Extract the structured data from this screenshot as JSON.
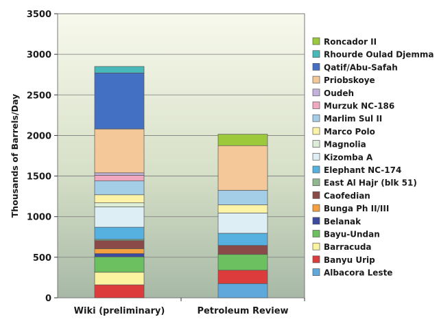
{
  "chart_data": {
    "type": "bar",
    "stacked": true,
    "ylabel": "Thousands of Barrels/Day",
    "xlabel": "",
    "title": "",
    "ylim": [
      0,
      3500
    ],
    "yticks": [
      0,
      500,
      1000,
      1500,
      2000,
      2500,
      3000,
      3500
    ],
    "grid": true,
    "legend_position": "right",
    "categories": [
      "Wiki (preliminary)",
      "Petroleum Review"
    ],
    "series": [
      {
        "name": "Albacora Leste",
        "color": "#5fa8dc",
        "values": [
          0,
          175
        ]
      },
      {
        "name": "Banyu Urip",
        "color": "#dc3c3c",
        "values": [
          160,
          165
        ]
      },
      {
        "name": "Barracuda",
        "color": "#fbf3a0",
        "values": [
          155,
          0
        ]
      },
      {
        "name": "Bayu-Undan",
        "color": "#6cc060",
        "values": [
          190,
          195
        ]
      },
      {
        "name": "Belanak",
        "color": "#3c4aa0",
        "values": [
          40,
          0
        ]
      },
      {
        "name": "Bunga Ph II/III",
        "color": "#f5a040",
        "values": [
          60,
          0
        ]
      },
      {
        "name": "Caofedian",
        "color": "#8a4a48",
        "values": [
          100,
          110
        ]
      },
      {
        "name": "East Al Hajr (blk 51)",
        "color": "#8fb890",
        "values": [
          15,
          0
        ]
      },
      {
        "name": "Elephant NC-174",
        "color": "#56b0e0",
        "values": [
          150,
          150
        ]
      },
      {
        "name": "Kizomba A",
        "color": "#ddeff5",
        "values": [
          250,
          250
        ]
      },
      {
        "name": "Magnolia",
        "color": "#ddeed8",
        "values": [
          50,
          0
        ]
      },
      {
        "name": "Marco Polo",
        "color": "#fdf3a8",
        "values": [
          100,
          100
        ]
      },
      {
        "name": "Marlim Sul II",
        "color": "#a4cde8",
        "values": [
          170,
          180
        ]
      },
      {
        "name": "Murzuk NC-186",
        "color": "#f0a8c0",
        "values": [
          70,
          0
        ]
      },
      {
        "name": "Oudeh",
        "color": "#c4b2dc",
        "values": [
          30,
          0
        ]
      },
      {
        "name": "Priobskoye",
        "color": "#f4c898",
        "values": [
          540,
          550
        ]
      },
      {
        "name": "Qatif/Abu-Safah",
        "color": "#4470c4",
        "values": [
          690,
          0
        ]
      },
      {
        "name": "Rhourde Oulad Djemma",
        "color": "#48b8b8",
        "values": [
          80,
          0
        ]
      },
      {
        "name": "Roncador II",
        "color": "#9cc83c",
        "values": [
          0,
          140
        ]
      }
    ]
  }
}
